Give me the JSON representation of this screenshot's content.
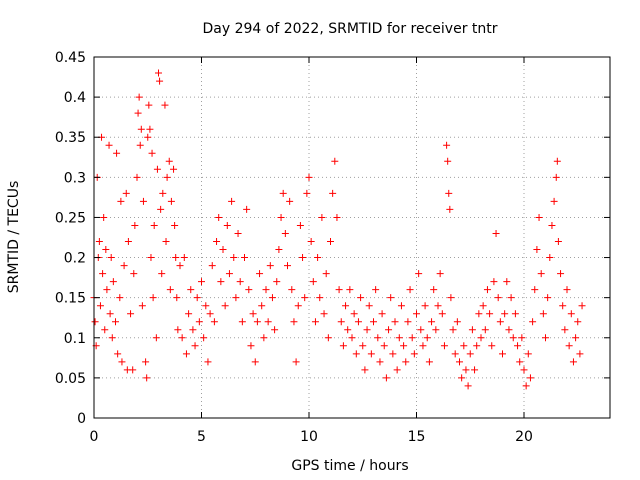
{
  "chart_data": {
    "type": "scatter",
    "title": "Day 294 of 2022, SRMTID for receiver tntr",
    "xlabel": "GPS time / hours",
    "ylabel": "SRMTID / TECUs",
    "xlim": [
      0,
      24
    ],
    "ylim": [
      0,
      0.45
    ],
    "x_ticks": [
      "0",
      "5",
      "10",
      "15",
      "20"
    ],
    "x_tick_values": [
      0,
      5,
      10,
      15,
      20
    ],
    "y_ticks": [
      "0",
      "0.05",
      "0.1",
      "0.15",
      "0.2",
      "0.25",
      "0.3",
      "0.35",
      "0.4",
      "0.45"
    ],
    "y_tick_values": [
      0,
      0.05,
      0.1,
      0.15,
      0.2,
      0.25,
      0.3,
      0.35,
      0.4,
      0.45
    ],
    "grid": true,
    "marker": "plus",
    "color": "#ff0000",
    "series": [
      {
        "points": [
          [
            0.0,
            0.15
          ],
          [
            0.05,
            0.12
          ],
          [
            0.1,
            0.09
          ],
          [
            0.15,
            0.3
          ],
          [
            0.2,
            0.2
          ],
          [
            0.25,
            0.22
          ],
          [
            0.3,
            0.14
          ],
          [
            0.35,
            0.35
          ],
          [
            0.4,
            0.18
          ],
          [
            0.45,
            0.25
          ],
          [
            0.5,
            0.11
          ],
          [
            0.55,
            0.21
          ],
          [
            0.6,
            0.16
          ],
          [
            0.7,
            0.34
          ],
          [
            0.75,
            0.13
          ],
          [
            0.8,
            0.2
          ],
          [
            0.85,
            0.1
          ],
          [
            0.9,
            0.17
          ],
          [
            1.0,
            0.12
          ],
          [
            1.05,
            0.33
          ],
          [
            1.1,
            0.08
          ],
          [
            1.2,
            0.15
          ],
          [
            1.25,
            0.27
          ],
          [
            1.3,
            0.07
          ],
          [
            1.4,
            0.19
          ],
          [
            1.5,
            0.28
          ],
          [
            1.55,
            0.06
          ],
          [
            1.6,
            0.22
          ],
          [
            1.7,
            0.13
          ],
          [
            1.8,
            0.06
          ],
          [
            1.85,
            0.18
          ],
          [
            1.9,
            0.24
          ],
          [
            2.0,
            0.3
          ],
          [
            2.05,
            0.38
          ],
          [
            2.1,
            0.4
          ],
          [
            2.15,
            0.34
          ],
          [
            2.2,
            0.36
          ],
          [
            2.25,
            0.14
          ],
          [
            2.3,
            0.27
          ],
          [
            2.4,
            0.07
          ],
          [
            2.45,
            0.05
          ],
          [
            2.5,
            0.35
          ],
          [
            2.55,
            0.39
          ],
          [
            2.6,
            0.36
          ],
          [
            2.65,
            0.2
          ],
          [
            2.7,
            0.33
          ],
          [
            2.75,
            0.15
          ],
          [
            2.8,
            0.24
          ],
          [
            2.9,
            0.1
          ],
          [
            2.95,
            0.31
          ],
          [
            3.0,
            0.43
          ],
          [
            3.05,
            0.42
          ],
          [
            3.1,
            0.26
          ],
          [
            3.15,
            0.18
          ],
          [
            3.2,
            0.28
          ],
          [
            3.3,
            0.39
          ],
          [
            3.35,
            0.22
          ],
          [
            3.4,
            0.3
          ],
          [
            3.5,
            0.32
          ],
          [
            3.55,
            0.16
          ],
          [
            3.6,
            0.27
          ],
          [
            3.7,
            0.31
          ],
          [
            3.75,
            0.24
          ],
          [
            3.8,
            0.2
          ],
          [
            3.85,
            0.15
          ],
          [
            3.9,
            0.11
          ],
          [
            4.0,
            0.19
          ],
          [
            4.1,
            0.1
          ],
          [
            4.2,
            0.2
          ],
          [
            4.3,
            0.08
          ],
          [
            4.4,
            0.13
          ],
          [
            4.5,
            0.16
          ],
          [
            4.6,
            0.11
          ],
          [
            4.7,
            0.09
          ],
          [
            4.8,
            0.15
          ],
          [
            4.9,
            0.12
          ],
          [
            5.0,
            0.17
          ],
          [
            5.1,
            0.1
          ],
          [
            5.2,
            0.14
          ],
          [
            5.3,
            0.07
          ],
          [
            5.4,
            0.13
          ],
          [
            5.5,
            0.19
          ],
          [
            5.6,
            0.12
          ],
          [
            5.7,
            0.22
          ],
          [
            5.8,
            0.25
          ],
          [
            5.9,
            0.17
          ],
          [
            6.0,
            0.21
          ],
          [
            6.1,
            0.14
          ],
          [
            6.2,
            0.24
          ],
          [
            6.3,
            0.18
          ],
          [
            6.4,
            0.27
          ],
          [
            6.5,
            0.2
          ],
          [
            6.6,
            0.15
          ],
          [
            6.7,
            0.23
          ],
          [
            6.8,
            0.17
          ],
          [
            6.9,
            0.12
          ],
          [
            7.0,
            0.2
          ],
          [
            7.1,
            0.26
          ],
          [
            7.2,
            0.16
          ],
          [
            7.3,
            0.09
          ],
          [
            7.4,
            0.13
          ],
          [
            7.5,
            0.07
          ],
          [
            7.6,
            0.12
          ],
          [
            7.7,
            0.18
          ],
          [
            7.8,
            0.14
          ],
          [
            7.9,
            0.1
          ],
          [
            8.0,
            0.16
          ],
          [
            8.1,
            0.12
          ],
          [
            8.2,
            0.19
          ],
          [
            8.3,
            0.15
          ],
          [
            8.4,
            0.11
          ],
          [
            8.5,
            0.17
          ],
          [
            8.6,
            0.21
          ],
          [
            8.7,
            0.25
          ],
          [
            8.8,
            0.28
          ],
          [
            8.9,
            0.23
          ],
          [
            9.0,
            0.19
          ],
          [
            9.1,
            0.27
          ],
          [
            9.2,
            0.16
          ],
          [
            9.3,
            0.12
          ],
          [
            9.4,
            0.07
          ],
          [
            9.5,
            0.14
          ],
          [
            9.6,
            0.24
          ],
          [
            9.7,
            0.2
          ],
          [
            9.8,
            0.15
          ],
          [
            9.9,
            0.28
          ],
          [
            10.0,
            0.3
          ],
          [
            10.1,
            0.22
          ],
          [
            10.2,
            0.17
          ],
          [
            10.3,
            0.12
          ],
          [
            10.4,
            0.2
          ],
          [
            10.5,
            0.15
          ],
          [
            10.6,
            0.25
          ],
          [
            10.7,
            0.13
          ],
          [
            10.8,
            0.18
          ],
          [
            10.9,
            0.1
          ],
          [
            11.0,
            0.22
          ],
          [
            11.1,
            0.28
          ],
          [
            11.2,
            0.32
          ],
          [
            11.3,
            0.25
          ],
          [
            11.4,
            0.16
          ],
          [
            11.5,
            0.12
          ],
          [
            11.6,
            0.09
          ],
          [
            11.7,
            0.14
          ],
          [
            11.8,
            0.11
          ],
          [
            11.9,
            0.16
          ],
          [
            12.0,
            0.1
          ],
          [
            12.1,
            0.13
          ],
          [
            12.2,
            0.08
          ],
          [
            12.3,
            0.12
          ],
          [
            12.4,
            0.15
          ],
          [
            12.5,
            0.09
          ],
          [
            12.6,
            0.06
          ],
          [
            12.7,
            0.11
          ],
          [
            12.8,
            0.14
          ],
          [
            12.9,
            0.08
          ],
          [
            13.0,
            0.12
          ],
          [
            13.1,
            0.16
          ],
          [
            13.2,
            0.1
          ],
          [
            13.3,
            0.07
          ],
          [
            13.4,
            0.13
          ],
          [
            13.5,
            0.09
          ],
          [
            13.6,
            0.05
          ],
          [
            13.7,
            0.11
          ],
          [
            13.8,
            0.15
          ],
          [
            13.9,
            0.08
          ],
          [
            14.0,
            0.12
          ],
          [
            14.1,
            0.06
          ],
          [
            14.2,
            0.1
          ],
          [
            14.3,
            0.14
          ],
          [
            14.4,
            0.09
          ],
          [
            14.5,
            0.07
          ],
          [
            14.6,
            0.12
          ],
          [
            14.7,
            0.16
          ],
          [
            14.8,
            0.1
          ],
          [
            14.9,
            0.08
          ],
          [
            15.0,
            0.13
          ],
          [
            15.1,
            0.18
          ],
          [
            15.2,
            0.11
          ],
          [
            15.3,
            0.09
          ],
          [
            15.4,
            0.14
          ],
          [
            15.5,
            0.1
          ],
          [
            15.6,
            0.07
          ],
          [
            15.7,
            0.12
          ],
          [
            15.8,
            0.16
          ],
          [
            15.9,
            0.11
          ],
          [
            16.0,
            0.14
          ],
          [
            16.1,
            0.18
          ],
          [
            16.2,
            0.13
          ],
          [
            16.3,
            0.09
          ],
          [
            16.4,
            0.34
          ],
          [
            16.45,
            0.32
          ],
          [
            16.5,
            0.28
          ],
          [
            16.55,
            0.26
          ],
          [
            16.6,
            0.15
          ],
          [
            16.7,
            0.11
          ],
          [
            16.8,
            0.08
          ],
          [
            16.9,
            0.12
          ],
          [
            17.0,
            0.07
          ],
          [
            17.1,
            0.05
          ],
          [
            17.2,
            0.09
          ],
          [
            17.3,
            0.06
          ],
          [
            17.4,
            0.04
          ],
          [
            17.5,
            0.08
          ],
          [
            17.6,
            0.11
          ],
          [
            17.7,
            0.06
          ],
          [
            17.8,
            0.09
          ],
          [
            17.9,
            0.13
          ],
          [
            18.0,
            0.1
          ],
          [
            18.1,
            0.14
          ],
          [
            18.2,
            0.11
          ],
          [
            18.3,
            0.16
          ],
          [
            18.4,
            0.13
          ],
          [
            18.5,
            0.09
          ],
          [
            18.6,
            0.17
          ],
          [
            18.7,
            0.23
          ],
          [
            18.8,
            0.15
          ],
          [
            18.9,
            0.12
          ],
          [
            19.0,
            0.08
          ],
          [
            19.1,
            0.13
          ],
          [
            19.2,
            0.17
          ],
          [
            19.3,
            0.11
          ],
          [
            19.4,
            0.15
          ],
          [
            19.5,
            0.1
          ],
          [
            19.6,
            0.13
          ],
          [
            19.7,
            0.09
          ],
          [
            19.8,
            0.07
          ],
          [
            19.9,
            0.1
          ],
          [
            20.0,
            0.06
          ],
          [
            20.1,
            0.04
          ],
          [
            20.2,
            0.08
          ],
          [
            20.3,
            0.05
          ],
          [
            20.4,
            0.12
          ],
          [
            20.5,
            0.16
          ],
          [
            20.6,
            0.21
          ],
          [
            20.7,
            0.25
          ],
          [
            20.8,
            0.18
          ],
          [
            20.9,
            0.13
          ],
          [
            21.0,
            0.1
          ],
          [
            21.1,
            0.15
          ],
          [
            21.2,
            0.2
          ],
          [
            21.3,
            0.24
          ],
          [
            21.4,
            0.27
          ],
          [
            21.5,
            0.3
          ],
          [
            21.55,
            0.32
          ],
          [
            21.6,
            0.22
          ],
          [
            21.7,
            0.18
          ],
          [
            21.8,
            0.14
          ],
          [
            21.9,
            0.11
          ],
          [
            22.0,
            0.16
          ],
          [
            22.1,
            0.09
          ],
          [
            22.2,
            0.13
          ],
          [
            22.3,
            0.07
          ],
          [
            22.4,
            0.1
          ],
          [
            22.5,
            0.12
          ],
          [
            22.6,
            0.08
          ],
          [
            22.7,
            0.14
          ]
        ]
      }
    ]
  }
}
